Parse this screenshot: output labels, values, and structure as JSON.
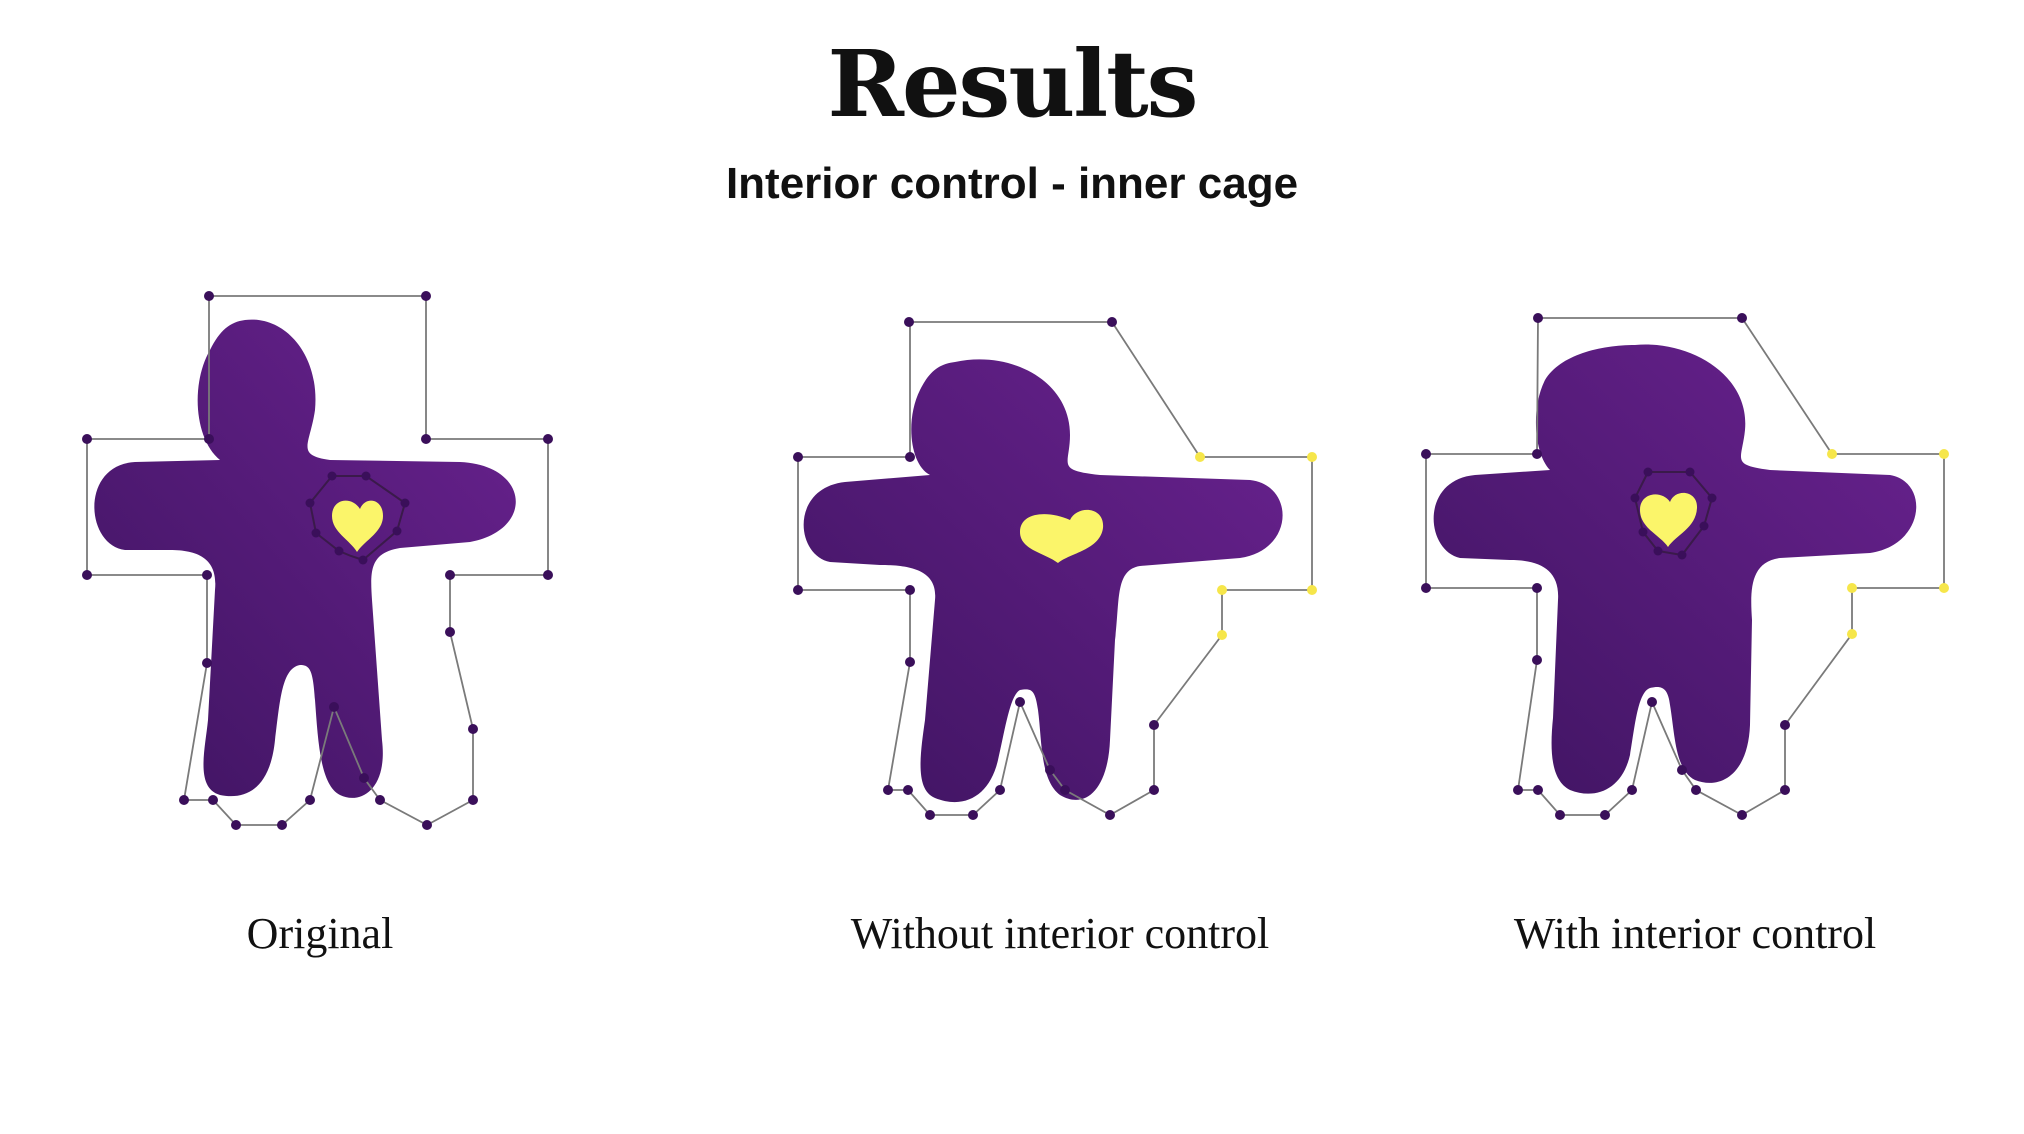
{
  "title": "Results",
  "subtitle": "Interior control - inner cage",
  "panels": [
    {
      "caption": "Original"
    },
    {
      "caption": "Without interior control"
    },
    {
      "caption": "With interior control"
    }
  ],
  "colors": {
    "body": "#4a1a6e",
    "body_light": "#621f85",
    "heart": "#fbf56a",
    "vertex": "#3a0f5a",
    "moved_vertex": "#f6e64a",
    "cage_line": "#7a7a7a"
  }
}
